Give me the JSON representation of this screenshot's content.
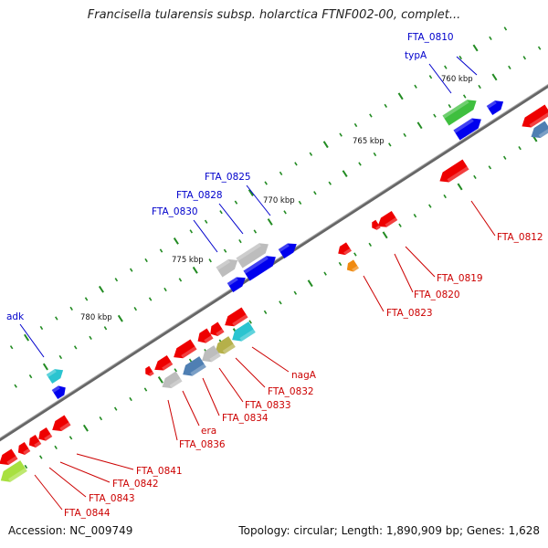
{
  "title": "Francisella tularensis subsp. holarctica FTNF002-00, complet...",
  "footer": {
    "accession": "Accession: NC_009749",
    "summary": "Topology: circular; Length: 1,890,909 bp; Genes: 1,628"
  },
  "colors": {
    "backbone": "#808080",
    "tick": "#228b22",
    "forward_label": "#0000cc",
    "reverse_label": "#cc0000",
    "red_gene": "#ee0000",
    "blue_gene": "#0000ee",
    "gray_gene": "#bdbdbd",
    "steelblue_gene": "#4f7fb3",
    "cyan_gene": "#2bc4d0",
    "olive_gene": "#b5b04a",
    "green_gene": "#3fbf3f",
    "lime_gene": "#a8e040",
    "orange_gene": "#f08a10"
  },
  "scale_labels": [
    "760 kbp",
    "765 kbp",
    "770 kbp",
    "775 kbp",
    "780 kbp"
  ],
  "forward_gene_labels": [
    "FTA_0810",
    "typA",
    "FTA_0825",
    "FTA_0828",
    "FTA_0830",
    "adk"
  ],
  "reverse_gene_labels": [
    "FTA_0812",
    "FTA_0819",
    "FTA_0820",
    "FTA_0823",
    "nagA",
    "FTA_0832",
    "FTA_0833",
    "FTA_0834",
    "era",
    "FTA_0836",
    "FTA_0841",
    "FTA_0842",
    "FTA_0843",
    "FTA_0844"
  ]
}
